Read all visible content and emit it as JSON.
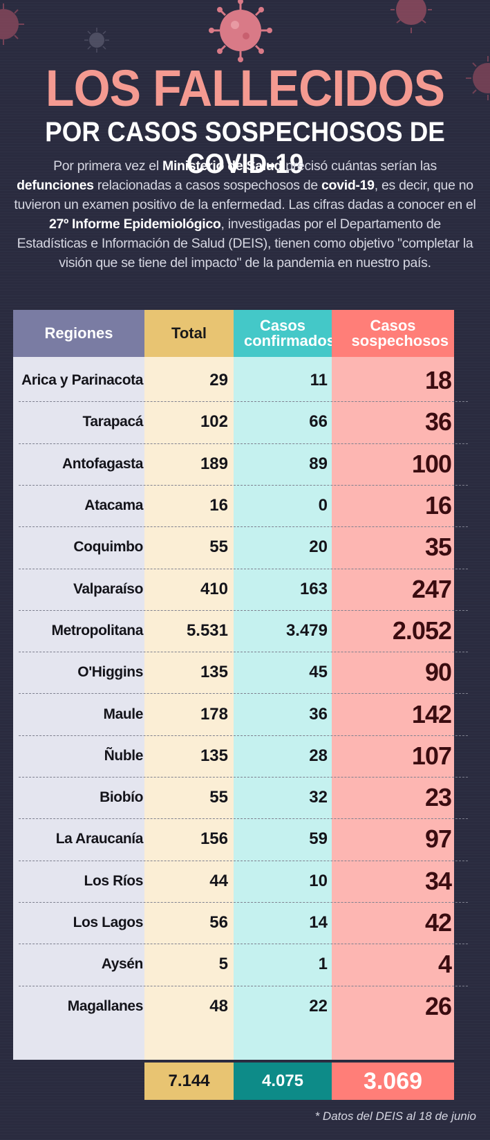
{
  "title": "LOS FALLECIDOS",
  "subtitle": "POR CASOS SOSPECHOSOS DE COVID-19",
  "intro": {
    "p1": "Por primera vez el ",
    "b1": "Ministerio de Salud",
    "p2": " precisó cuántas serían las ",
    "b2": "defunciones",
    "p3": " relacionadas a casos sospechosos de ",
    "b3": "covid-19",
    "p4": ", es decir, que no tuvieron un examen positivo de la enfermedad. Las cifras dadas a conocer en el ",
    "b4": "27º Informe Epidemiológico",
    "p5": ", investigadas por el Departamento de Estadísticas e Información de Salud (DEIS), tienen como objetivo \"completar la visión que se tiene del impacto\" de la pandemia en nuestro país."
  },
  "colors": {
    "regions": "#e4e5ef",
    "regions_header": "#7a7ca3",
    "total": "#fbeed5",
    "total_header": "#e8c472",
    "confirmed": "#c5f1ef",
    "confirmed_header": "#44c8c8",
    "suspected": "#fdb6b2",
    "suspected_header": "#ff7e78",
    "total_footer_confirmed": "#0d8b88"
  },
  "chart_data": {
    "type": "table",
    "columns": [
      "Regiones",
      "Total",
      "Casos confirmados",
      "Casos sospechosos"
    ],
    "rows": [
      {
        "region": "Arica y Parinacota",
        "total": "29",
        "confirmed": "11",
        "suspected": "18"
      },
      {
        "region": "Tarapacá",
        "total": "102",
        "confirmed": "66",
        "suspected": "36"
      },
      {
        "region": "Antofagasta",
        "total": "189",
        "confirmed": "89",
        "suspected": "100"
      },
      {
        "region": "Atacama",
        "total": "16",
        "confirmed": "0",
        "suspected": "16"
      },
      {
        "region": "Coquimbo",
        "total": "55",
        "confirmed": "20",
        "suspected": "35"
      },
      {
        "region": "Valparaíso",
        "total": "410",
        "confirmed": "163",
        "suspected": "247"
      },
      {
        "region": "Metropolitana",
        "total": "5.531",
        "confirmed": "3.479",
        "suspected": "2.052"
      },
      {
        "region": "O'Higgins",
        "total": "135",
        "confirmed": "45",
        "suspected": "90"
      },
      {
        "region": "Maule",
        "total": "178",
        "confirmed": "36",
        "suspected": "142"
      },
      {
        "region": "Ñuble",
        "total": "135",
        "confirmed": "28",
        "suspected": "107"
      },
      {
        "region": "Biobío",
        "total": "55",
        "confirmed": "32",
        "suspected": "23"
      },
      {
        "region": "La Araucanía",
        "total": "156",
        "confirmed": "59",
        "suspected": "97"
      },
      {
        "region": "Los Ríos",
        "total": "44",
        "confirmed": "10",
        "suspected": "34"
      },
      {
        "region": "Los Lagos",
        "total": "56",
        "confirmed": "14",
        "suspected": "42"
      },
      {
        "region": "Aysén",
        "total": "5",
        "confirmed": "1",
        "suspected": "4"
      },
      {
        "region": "Magallanes",
        "total": "48",
        "confirmed": "22",
        "suspected": "26"
      }
    ],
    "totals": {
      "total": "7.144",
      "confirmed": "4.075",
      "suspected": "3.069"
    }
  },
  "footnote": "* Datos del DEIS al 18 de junio"
}
